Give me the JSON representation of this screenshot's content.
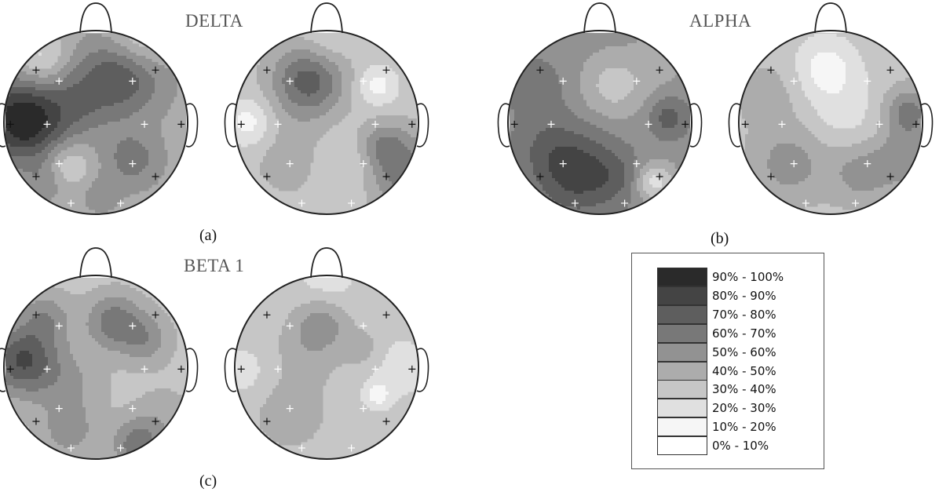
{
  "panels": [
    {
      "id": "a",
      "title": "DELTA",
      "caption": "(a)"
    },
    {
      "id": "b",
      "title": "ALPHA",
      "caption": "(b)"
    },
    {
      "id": "c",
      "title": "BETA 1",
      "caption": "(c)"
    }
  ],
  "legend": {
    "items": [
      {
        "label": "90% - 100%",
        "color": "#2a2a2a"
      },
      {
        "label": "80% - 90%",
        "color": "#444444"
      },
      {
        "label": "70% - 80%",
        "color": "#5e5e5e"
      },
      {
        "label": "60% - 70%",
        "color": "#787878"
      },
      {
        "label": "50% - 60%",
        "color": "#929292"
      },
      {
        "label": "40% - 50%",
        "color": "#acacac"
      },
      {
        "label": "30% - 40%",
        "color": "#c6c6c6"
      },
      {
        "label": "20% - 30%",
        "color": "#e0e0e0"
      },
      {
        "label": "10% - 20%",
        "color": "#f6f6f6"
      },
      {
        "label": "0% - 10%",
        "color": "#ffffff"
      }
    ]
  },
  "colors": {
    "outline": "#222222",
    "electrode_on_dark": "#ffffff",
    "electrode_on_light": "#111111",
    "caption": "#111111",
    "title": "#555555"
  },
  "maps": [
    {
      "panel": "a",
      "base": 4,
      "blobs": [
        [
          -0.85,
          -0.05,
          0.3,
          8
        ],
        [
          -0.6,
          0.05,
          0.35,
          6
        ],
        [
          0.1,
          -0.48,
          0.3,
          6
        ],
        [
          0.4,
          -0.5,
          0.3,
          6
        ],
        [
          -0.2,
          -0.2,
          0.22,
          5
        ],
        [
          -0.3,
          0.45,
          0.18,
          2
        ],
        [
          0.4,
          0.4,
          0.22,
          6
        ],
        [
          -0.55,
          0.65,
          0.15,
          5
        ],
        [
          0.05,
          0.8,
          0.15,
          5
        ],
        [
          -0.6,
          -0.7,
          0.2,
          2
        ],
        [
          0.5,
          -0.9,
          0.25,
          2
        ]
      ]
    },
    {
      "panel": "a",
      "base": 3,
      "blobs": [
        [
          -0.2,
          -0.45,
          0.28,
          7
        ],
        [
          0.55,
          -0.4,
          0.15,
          1
        ],
        [
          -0.85,
          0.0,
          0.18,
          1
        ],
        [
          0.25,
          0.45,
          0.25,
          2
        ],
        [
          0.85,
          0.55,
          0.3,
          6
        ],
        [
          0.6,
          0.25,
          0.18,
          5
        ],
        [
          -0.4,
          0.4,
          0.3,
          4
        ],
        [
          0.0,
          -0.9,
          0.2,
          2
        ]
      ]
    },
    {
      "panel": "b",
      "base": 5,
      "blobs": [
        [
          -0.25,
          0.55,
          0.32,
          8
        ],
        [
          -0.6,
          0.25,
          0.25,
          6
        ],
        [
          0.2,
          0.6,
          0.2,
          6
        ],
        [
          -0.7,
          -0.4,
          0.25,
          6
        ],
        [
          0.75,
          -0.05,
          0.15,
          7
        ],
        [
          0.15,
          -0.4,
          0.25,
          3
        ],
        [
          0.6,
          0.65,
          0.15,
          2
        ],
        [
          0.65,
          -0.7,
          0.2,
          4
        ]
      ]
    },
    {
      "panel": "b",
      "base": 3,
      "blobs": [
        [
          -0.05,
          -0.6,
          0.22,
          1
        ],
        [
          0.15,
          -0.1,
          0.3,
          2
        ],
        [
          -0.45,
          0.45,
          0.3,
          5
        ],
        [
          0.35,
          0.55,
          0.25,
          5
        ],
        [
          0.85,
          -0.1,
          0.2,
          6
        ],
        [
          -0.7,
          -0.3,
          0.25,
          4
        ],
        [
          0.8,
          0.4,
          0.2,
          5
        ]
      ]
    },
    {
      "panel": "c",
      "base": 3,
      "blobs": [
        [
          -0.85,
          -0.1,
          0.25,
          6
        ],
        [
          -0.65,
          0.0,
          0.3,
          5
        ],
        [
          0.2,
          -0.5,
          0.22,
          6
        ],
        [
          0.55,
          -0.3,
          0.2,
          5
        ],
        [
          -0.55,
          -0.55,
          0.2,
          5
        ],
        [
          0.45,
          0.85,
          0.2,
          6
        ],
        [
          -0.3,
          0.7,
          0.22,
          5
        ],
        [
          0.75,
          0.55,
          0.25,
          4
        ],
        [
          -0.2,
          0.2,
          0.25,
          4
        ],
        [
          0.55,
          0.1,
          0.2,
          3
        ]
      ]
    },
    {
      "panel": "c",
      "base": 3,
      "blobs": [
        [
          -0.05,
          -0.5,
          0.2,
          5
        ],
        [
          0.4,
          -0.2,
          0.15,
          4
        ],
        [
          -0.2,
          -0.2,
          0.25,
          4
        ],
        [
          -0.4,
          0.5,
          0.3,
          4
        ],
        [
          0.55,
          0.3,
          0.1,
          1
        ],
        [
          -0.9,
          0.05,
          0.2,
          2
        ],
        [
          0.8,
          0.0,
          0.25,
          2
        ],
        [
          0.0,
          -0.9,
          0.25,
          2
        ],
        [
          0.45,
          0.8,
          0.2,
          3
        ]
      ]
    }
  ],
  "electrodes": [
    [
      -0.65,
      -0.57
    ],
    [
      0.65,
      -0.57
    ],
    [
      -0.4,
      -0.45
    ],
    [
      0.4,
      -0.45
    ],
    [
      -0.93,
      0.02
    ],
    [
      -0.53,
      0.02
    ],
    [
      0.53,
      0.02
    ],
    [
      0.93,
      0.02
    ],
    [
      -0.4,
      0.45
    ],
    [
      0.4,
      0.45
    ],
    [
      -0.65,
      0.59
    ],
    [
      0.65,
      0.59
    ],
    [
      -0.27,
      0.88
    ],
    [
      0.27,
      0.88
    ]
  ]
}
